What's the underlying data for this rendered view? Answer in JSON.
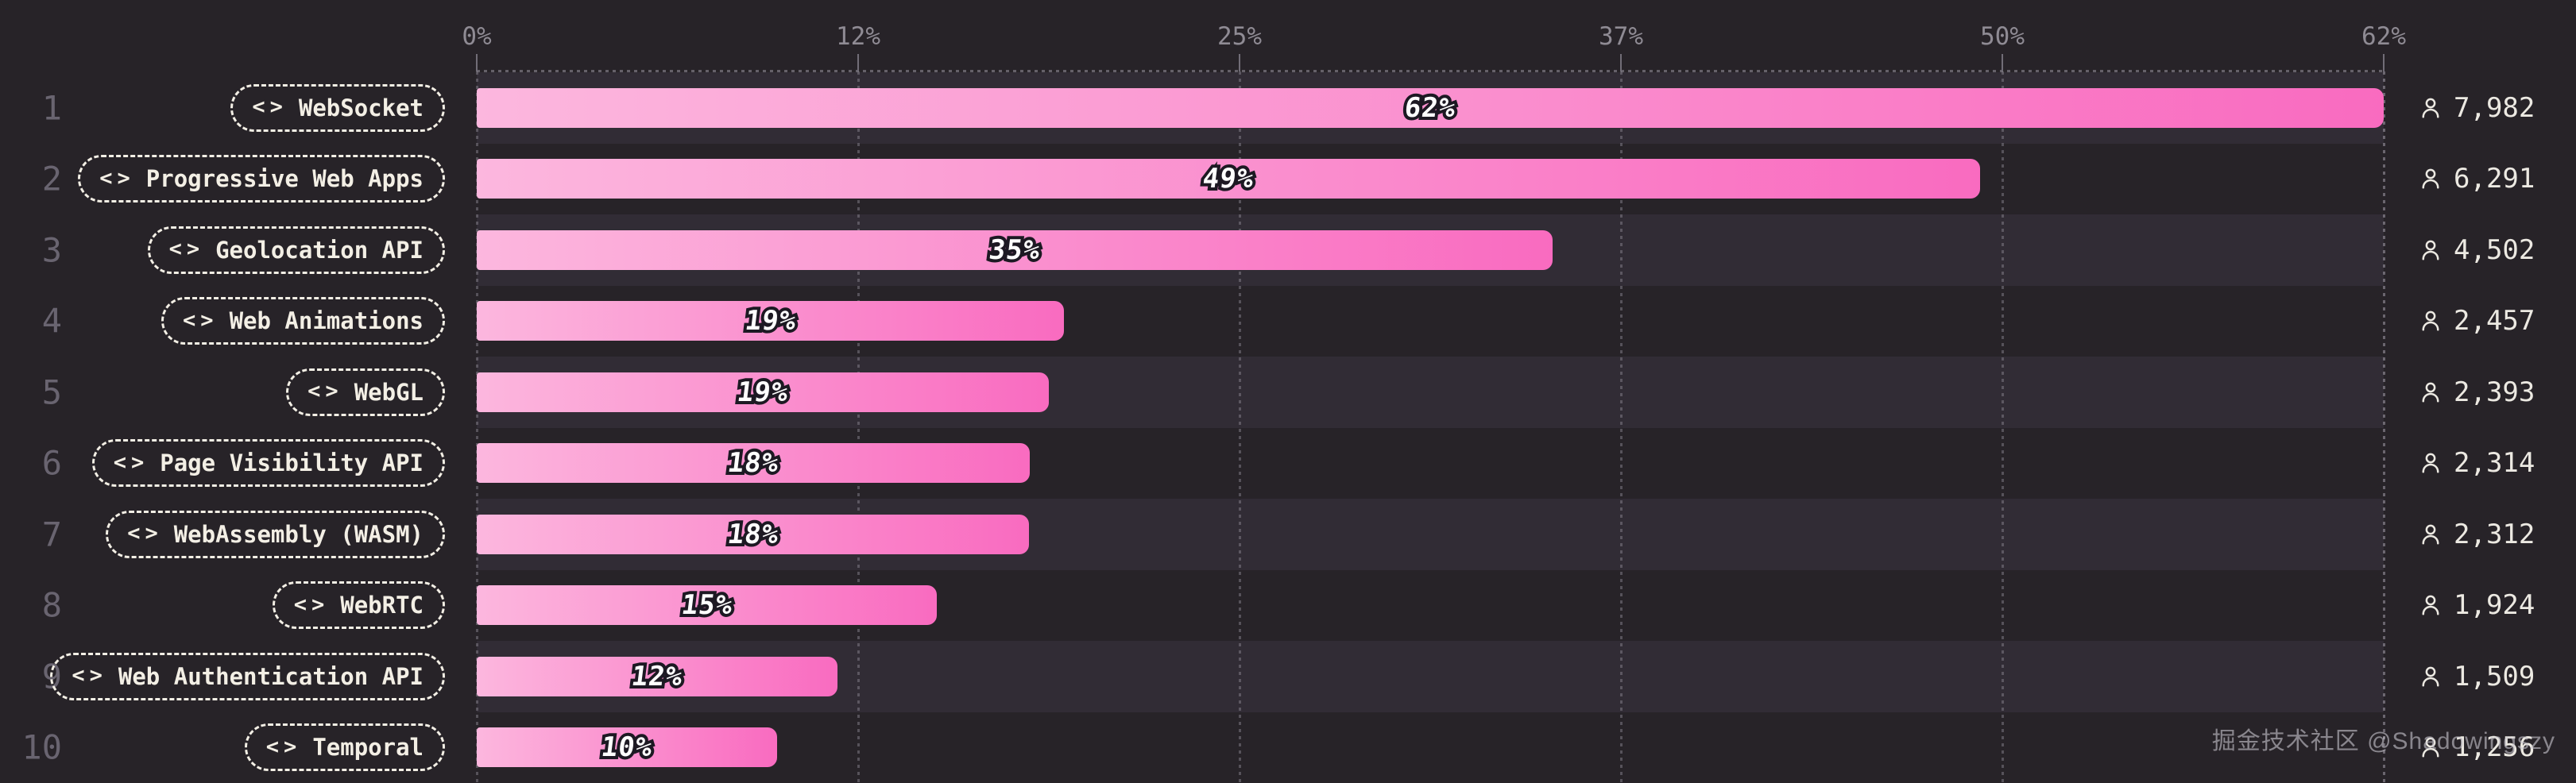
{
  "axis": {
    "ticks": [
      "0%",
      "12%",
      "25%",
      "37%",
      "50%",
      "62%"
    ]
  },
  "rows": [
    {
      "rank": "1",
      "label": "WebSocket",
      "pct": "62%",
      "count_display": "7,982",
      "count_value": 7982
    },
    {
      "rank": "2",
      "label": "Progressive Web Apps",
      "pct": "49%",
      "count_display": "6,291",
      "count_value": 6291
    },
    {
      "rank": "3",
      "label": "Geolocation API",
      "pct": "35%",
      "count_display": "4,502",
      "count_value": 4502
    },
    {
      "rank": "4",
      "label": "Web Animations",
      "pct": "19%",
      "count_display": "2,457",
      "count_value": 2457
    },
    {
      "rank": "5",
      "label": "WebGL",
      "pct": "19%",
      "count_display": "2,393",
      "count_value": 2393
    },
    {
      "rank": "6",
      "label": "Page Visibility API",
      "pct": "18%",
      "count_display": "2,314",
      "count_value": 2314
    },
    {
      "rank": "7",
      "label": "WebAssembly (WASM)",
      "pct": "18%",
      "count_display": "2,312",
      "count_value": 2312
    },
    {
      "rank": "8",
      "label": "WebRTC",
      "pct": "15%",
      "count_display": "1,924",
      "count_value": 1924
    },
    {
      "rank": "9",
      "label": "Web Authentication API",
      "pct": "12%",
      "count_display": "1,509",
      "count_value": 1509
    },
    {
      "rank": "10",
      "label": "Temporal",
      "pct": "10%",
      "count_display": "1,256",
      "count_value": 1256
    }
  ],
  "icons": {
    "code_glyph": "<>",
    "person": "person-icon"
  },
  "watermark": "掘金技术社区 @Shadowingszy",
  "colors": {
    "background": "#272328",
    "row_track": "#312c35",
    "bar_gradient_start": "#fcb7de",
    "bar_gradient_end": "#f96bc0",
    "pill_text": "#f3efe5",
    "rank_text": "#696470",
    "axis_text": "#8f8b94",
    "count_text": "#ece9e2",
    "pct_outline": "#1d1923",
    "grid": "#98939e"
  },
  "chart_data": {
    "type": "bar",
    "orientation": "horizontal",
    "title": "",
    "categories": [
      "WebSocket",
      "Progressive Web Apps",
      "Geolocation API",
      "Web Animations",
      "WebGL",
      "Page Visibility API",
      "WebAssembly (WASM)",
      "WebRTC",
      "Web Authentication API",
      "Temporal"
    ],
    "ranks": [
      1,
      2,
      3,
      4,
      5,
      6,
      7,
      8,
      9,
      10
    ],
    "series": [
      {
        "name": "usage_percent",
        "values": [
          62,
          49,
          35,
          19,
          19,
          18,
          18,
          15,
          12,
          10
        ]
      },
      {
        "name": "respondents",
        "values": [
          7982,
          6291,
          4502,
          2457,
          2393,
          2314,
          2312,
          1924,
          1509,
          1256
        ]
      }
    ],
    "xlabel": "",
    "ylabel": "",
    "xlim": [
      0,
      62
    ],
    "x_ticks": [
      "0%",
      "12%",
      "25%",
      "37%",
      "50%",
      "62%"
    ],
    "grid": "dotted-vertical",
    "legend": false
  }
}
